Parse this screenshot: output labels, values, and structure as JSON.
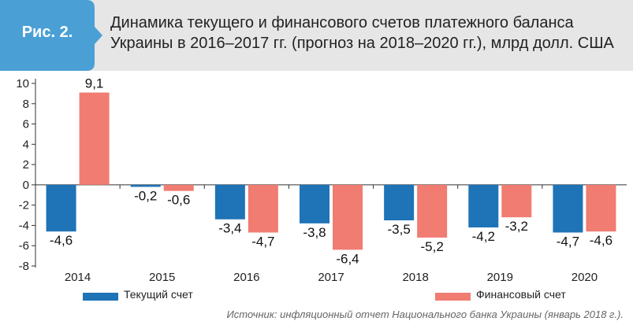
{
  "figure": {
    "label": "Рис. 2.",
    "title_line1": "Динамика текущего и финансового счетов платежного баланса",
    "title_line2": "Украины в 2016–2017 гг. (прогноз на 2018–2020 гг.), млрд долл. США",
    "source": "Источник: инфляционный отчет Национального банка Украины (январь 2018 г.)."
  },
  "colors": {
    "badge": "#4aa0d5",
    "header_bg": "#e6e6e6",
    "current": "#1f73b7",
    "financial": "#f07c72"
  },
  "chart_data": {
    "type": "bar",
    "categories": [
      "2014",
      "2015",
      "2016",
      "2017",
      "2018",
      "2019",
      "2020"
    ],
    "series": [
      {
        "name": "Текущий счет",
        "values": [
          -4.6,
          -0.2,
          -3.4,
          -3.8,
          -3.5,
          -4.2,
          -4.7
        ],
        "labels": [
          "-4,6",
          "-0,2",
          "-3,4",
          "-3,8",
          "-3,5",
          "-4,2",
          "-4,7"
        ]
      },
      {
        "name": "Финансовый счет",
        "values": [
          9.1,
          -0.6,
          -4.7,
          -6.4,
          -5.2,
          -3.2,
          -4.6
        ],
        "labels": [
          "9,1",
          "-0,6",
          "-4,7",
          "-6,4",
          "-5,2",
          "-3,2",
          "-4,6"
        ]
      }
    ],
    "ylim": [
      -8,
      10
    ],
    "yticks": [
      -8,
      -6,
      -4,
      -2,
      0,
      2,
      4,
      6,
      8,
      10
    ],
    "grid": false,
    "legend_position": "bottom"
  }
}
